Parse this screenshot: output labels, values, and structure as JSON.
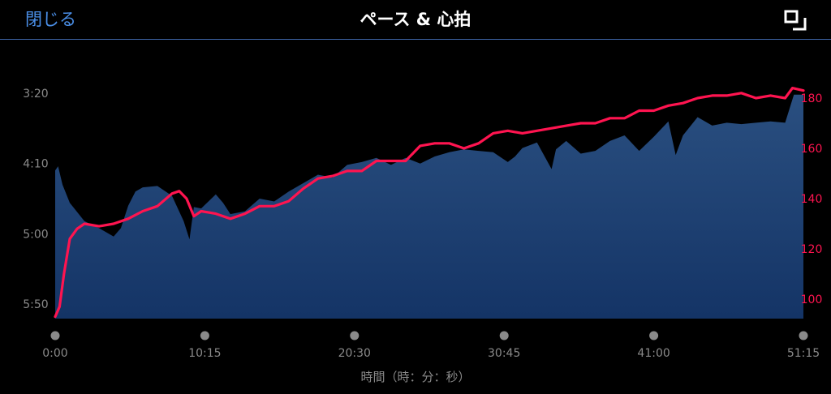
{
  "header": {
    "close_label": "閉じる",
    "title": "ペース & 心拍",
    "expand_icon": "expand-icon"
  },
  "colors": {
    "background": "#000000",
    "accent": "#4a8ee6",
    "divider": "#3e64a6",
    "pace_fill_top": "#2a4f80",
    "pace_fill_bottom": "#143466",
    "heart_rate_line": "#ff1450",
    "axis_text": "#8a8a8a",
    "hr_axis_text": "#ff1450",
    "marker": "#8a8a8a"
  },
  "chart_data": {
    "type": "area",
    "xlabel": "時間（時：分：秒）",
    "x_ticks": [
      "0:00",
      "10:15",
      "20:30",
      "30:45",
      "41:00",
      "51:15"
    ],
    "x_range_minutes": [
      0,
      51.25
    ],
    "left_axis": {
      "ylabel": "",
      "ticks": [
        "3:20",
        "4:10",
        "5:00",
        "5:50"
      ],
      "tick_seconds": [
        200,
        250,
        300,
        350
      ],
      "range_seconds_per_km": [
        190,
        370
      ],
      "inverted": true
    },
    "right_axis": {
      "ylabel": "",
      "ticks": [
        100,
        120,
        140,
        160,
        180
      ],
      "range_bpm": [
        91,
        186
      ]
    },
    "grid": false,
    "legend": "none",
    "series": [
      {
        "kind": "area",
        "unit": "seconds per km",
        "x": [
          0,
          0.2,
          0.5,
          1,
          2,
          3,
          4,
          4.5,
          5,
          5.5,
          6,
          7,
          8,
          8.8,
          9.2,
          9.5,
          10,
          11,
          11.5,
          12,
          13,
          14,
          15,
          16,
          17,
          18,
          19,
          20,
          21,
          22,
          23,
          24,
          25,
          26,
          27,
          28,
          29,
          30,
          31,
          31.5,
          32,
          33,
          34,
          34.3,
          35,
          36,
          37,
          38,
          39,
          40,
          41,
          42,
          42.5,
          43,
          44,
          45,
          46,
          47,
          48,
          49,
          50,
          50.6,
          51.25
        ],
        "values": [
          255,
          252,
          265,
          278,
          291,
          296,
          302,
          296,
          280,
          270,
          267,
          266,
          273,
          291,
          304,
          281,
          282,
          272,
          278,
          286,
          284,
          275,
          277,
          270,
          264,
          258,
          260,
          251,
          249,
          246,
          251,
          246,
          250,
          245,
          242,
          240,
          241,
          242,
          249,
          245,
          239,
          235,
          254,
          240,
          234,
          243,
          241,
          234,
          230,
          241,
          231,
          220,
          244,
          230,
          217,
          223,
          221,
          222,
          221,
          220,
          221,
          201,
          201
        ]
      },
      {
        "kind": "line",
        "name": "",
        "unit": "bpm",
        "x": [
          0,
          0.3,
          0.6,
          1,
          1.5,
          2,
          3,
          4,
          5,
          6,
          7,
          8,
          8.5,
          9,
          9.5,
          10,
          11,
          12,
          13,
          14,
          15,
          16,
          17,
          18,
          19,
          20,
          21,
          22,
          23,
          24,
          25,
          26,
          27,
          28,
          29,
          30,
          31,
          32,
          33,
          34,
          35,
          36,
          37,
          38,
          39,
          40,
          41,
          42,
          43,
          44,
          45,
          46,
          47,
          48,
          49,
          50,
          50.5,
          51.25
        ],
        "values": [
          93,
          97,
          110,
          124,
          128,
          130,
          129,
          130,
          132,
          135,
          137,
          142,
          143,
          140,
          133,
          135,
          134,
          132,
          134,
          137,
          137,
          139,
          144,
          148,
          149,
          151,
          151,
          155,
          155,
          155,
          161,
          162,
          162,
          160,
          162,
          166,
          167,
          166,
          167,
          168,
          169,
          170,
          170,
          172,
          172,
          175,
          175,
          177,
          178,
          180,
          181,
          181,
          182,
          180,
          181,
          180,
          184,
          183
        ]
      }
    ]
  }
}
